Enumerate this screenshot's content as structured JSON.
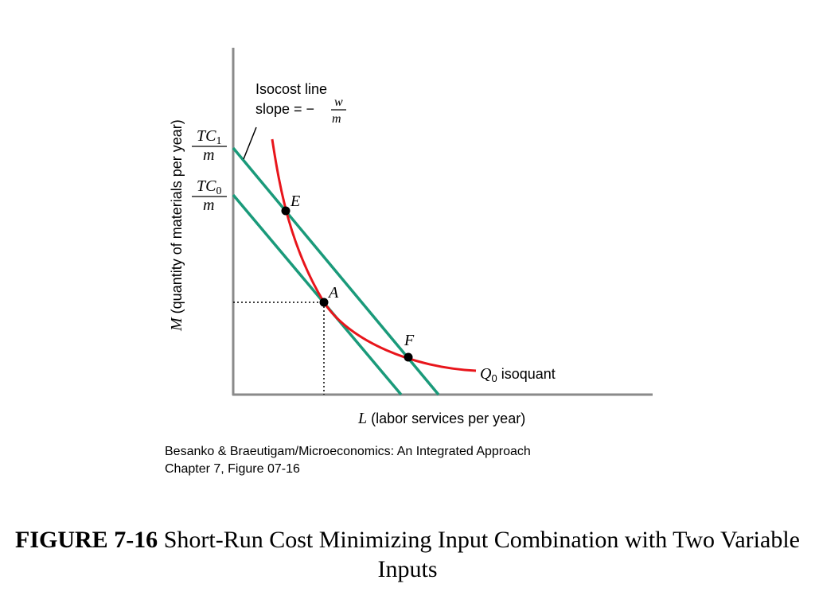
{
  "figure": {
    "y_axis_label_var": "M",
    "y_axis_label_text": " (quantity of materials per year)",
    "x_axis_label_var": "L",
    "x_axis_label_text": " (labor services per year)",
    "tick_tc1_num_base": "TC",
    "tick_tc1_num_sub": "1",
    "tick_tc1_den": "m",
    "tick_tc0_num_base": "TC",
    "tick_tc0_num_sub": "0",
    "tick_tc0_den": "m",
    "isocost_label_line1": "Isocost line",
    "isocost_label_slope_prefix": "slope = −",
    "isocost_label_slope_num": "w",
    "isocost_label_slope_den": "m",
    "point_E": "E",
    "point_A": "A",
    "point_F": "F",
    "isoquant_label_var": "Q",
    "isoquant_label_sub": "0",
    "isoquant_label_text": " isoquant",
    "colors": {
      "isocost": "#1a9a7a",
      "isoquant": "#e8151b",
      "axis": "#8a8a8a",
      "point": "#000000"
    }
  },
  "credit": {
    "line1": "Besanko & Braeutigam/Microeconomics: An Integrated Approach",
    "line2": "Chapter 7, Figure 07-16"
  },
  "caption": {
    "bold": "FIGURE 7-16",
    "text": " Short-Run Cost Minimizing Input Combination with Two Variable Inputs"
  }
}
